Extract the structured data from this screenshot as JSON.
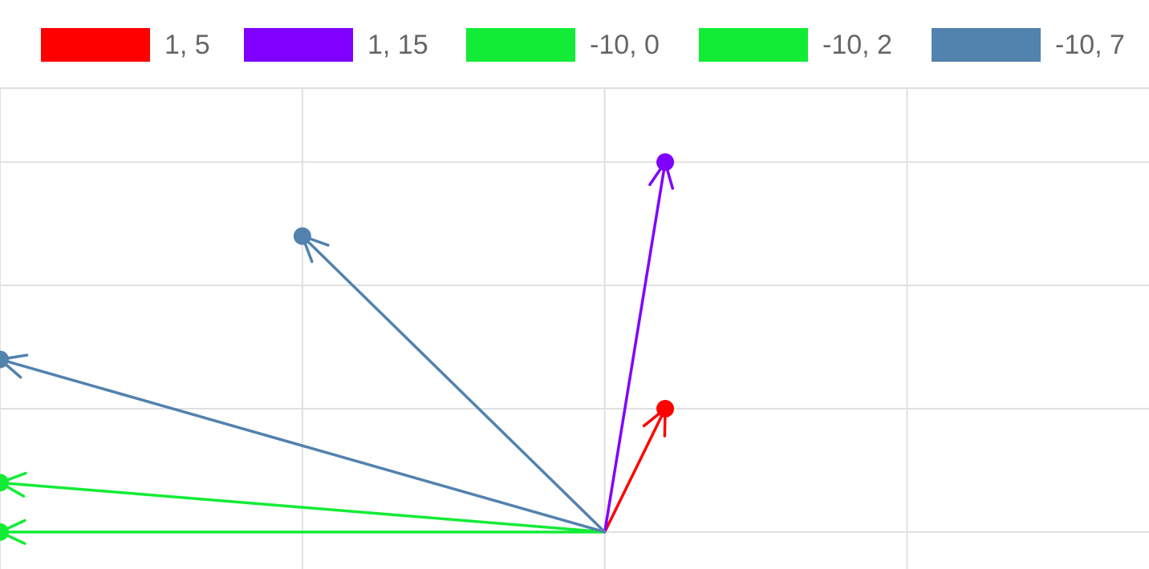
{
  "chart_data": {
    "type": "vector",
    "title": "",
    "xlabel": "",
    "ylabel": "",
    "grid": true,
    "legend_placement": "top",
    "xlim": [
      -20,
      18
    ],
    "ylim": [
      -1.5,
      18
    ],
    "x_gridlines": [
      -20,
      -10,
      0,
      10,
      20,
      30
    ],
    "y_gridlines": [
      0,
      5,
      10,
      15
    ],
    "series": [
      {
        "name": "1, 5",
        "color": "#ff0000",
        "vectors": [
          {
            "x": 2,
            "y": 5
          }
        ]
      },
      {
        "name": "1, 15",
        "color": "#8000ff",
        "vectors": [
          {
            "x": 2,
            "y": 15
          }
        ]
      },
      {
        "name": "-10, 0",
        "color": "#12ec36",
        "vectors": [
          {
            "x": -20,
            "y": 0
          }
        ]
      },
      {
        "name": "-10, 2",
        "color": "#12ec36",
        "vectors": [
          {
            "x": -20,
            "y": 2
          }
        ]
      },
      {
        "name": "-10, 7",
        "color": "#5282ae",
        "vectors": [
          {
            "x": -20,
            "y": 7
          },
          {
            "x": -10,
            "y": 12
          }
        ]
      }
    ]
  }
}
